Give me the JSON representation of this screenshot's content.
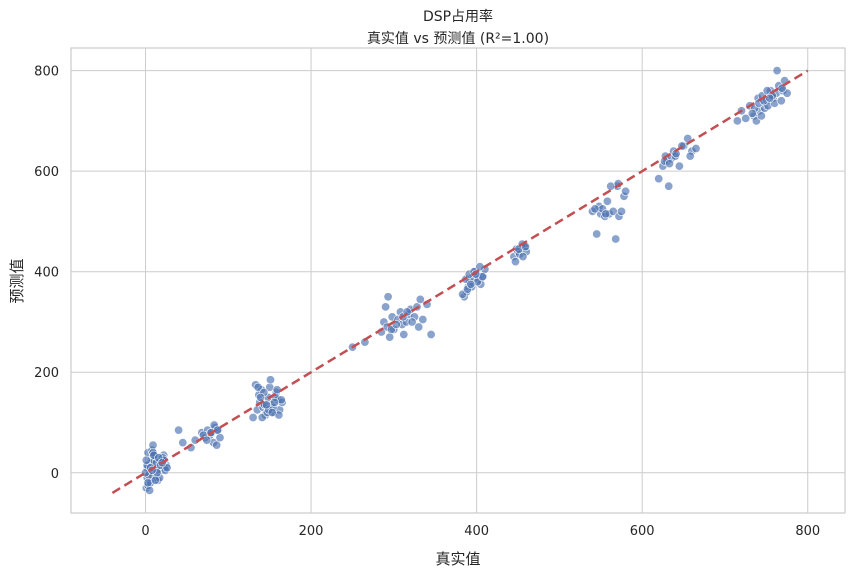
{
  "chart_data": {
    "type": "scatter",
    "title_line1": "DSP占用率",
    "title_line2": "真实值 vs 预测值 (R²=1.00)",
    "xlabel": "真实值",
    "ylabel": "预测值",
    "xlim": [
      -90,
      845
    ],
    "ylim": [
      -80,
      845
    ],
    "xticks": [
      0,
      200,
      400,
      600,
      800
    ],
    "yticks": [
      0,
      200,
      400,
      600,
      800
    ],
    "grid": true,
    "point_color": "#4c72b0",
    "reference_line": {
      "from": [
        -40,
        -40
      ],
      "to": [
        800,
        800
      ],
      "color": "#c44e52",
      "style": "dashed"
    },
    "series": [
      {
        "x": [
          2,
          4,
          6,
          8,
          3,
          5,
          1,
          7,
          10,
          12,
          15,
          18,
          20,
          22,
          25,
          3,
          5,
          8,
          12,
          16,
          2,
          6,
          9,
          14,
          19,
          23,
          4,
          7,
          11,
          0,
          2,
          5,
          9,
          13,
          17,
          21,
          24,
          1,
          3,
          6,
          10,
          14,
          18,
          22,
          26,
          8,
          12,
          16,
          20,
          40,
          45,
          55,
          60,
          68,
          72,
          75,
          78,
          80,
          82,
          84,
          86,
          88,
          90,
          70,
          74,
          79,
          83,
          87,
          130,
          135,
          138,
          140,
          142,
          145,
          148,
          150,
          152,
          155,
          158,
          160,
          162,
          165,
          133,
          137,
          141,
          144,
          147,
          151,
          154,
          157,
          161,
          164,
          136,
          143,
          149,
          156,
          139,
          146,
          153,
          159,
          250,
          265,
          285,
          288,
          290,
          292,
          295,
          298,
          300,
          305,
          308,
          310,
          312,
          315,
          318,
          320,
          325,
          330,
          335,
          340,
          345,
          293,
          297,
          303,
          311,
          316,
          322,
          328,
          332,
          385,
          388,
          390,
          392,
          395,
          398,
          400,
          402,
          405,
          408,
          410,
          383,
          387,
          391,
          394,
          397,
          401,
          404,
          407,
          389,
          393,
          399,
          445,
          448,
          450,
          452,
          455,
          458,
          460,
          447,
          451,
          456,
          459,
          540,
          545,
          548,
          550,
          552,
          555,
          558,
          560,
          565,
          568,
          570,
          572,
          575,
          578,
          580,
          562,
          571,
          543,
          556,
          620,
          625,
          628,
          630,
          632,
          635,
          638,
          640,
          645,
          650,
          655,
          660,
          665,
          627,
          633,
          641,
          648,
          658,
          715,
          720,
          725,
          730,
          735,
          738,
          740,
          742,
          745,
          748,
          750,
          752,
          755,
          758,
          760,
          762,
          765,
          768,
          770,
          772,
          775,
          736,
          744,
          751,
          757,
          763,
          769,
          733,
          741,
          747,
          754
        ],
        "y": [
          -10,
          5,
          20,
          -5,
          40,
          15,
          -30,
          25,
          10,
          30,
          -15,
          20,
          5,
          35,
          15,
          -25,
          0,
          45,
          -10,
          25,
          10,
          -20,
          55,
          5,
          30,
          10,
          -5,
          20,
          35,
          0,
          15,
          -35,
          40,
          20,
          -10,
          30,
          5,
          25,
          -20,
          10,
          35,
          0,
          15,
          25,
          10,
          5,
          -15,
          30,
          20,
          85,
          60,
          50,
          65,
          80,
          70,
          85,
          75,
          80,
          60,
          90,
          55,
          85,
          70,
          75,
          65,
          80,
          95,
          85,
          110,
          125,
          140,
          165,
          130,
          115,
          150,
          170,
          135,
          120,
          160,
          145,
          125,
          140,
          175,
          155,
          110,
          135,
          120,
          185,
          130,
          150,
          115,
          145,
          170,
          160,
          125,
          140,
          150,
          135,
          120,
          165,
          250,
          260,
          280,
          300,
          330,
          290,
          270,
          310,
          285,
          305,
          320,
          295,
          275,
          300,
          315,
          325,
          310,
          290,
          305,
          335,
          275,
          350,
          285,
          295,
          310,
          320,
          300,
          330,
          345,
          350,
          360,
          370,
          380,
          390,
          400,
          395,
          385,
          375,
          390,
          405,
          355,
          385,
          395,
          370,
          400,
          380,
          410,
          390,
          365,
          375,
          395,
          430,
          445,
          440,
          435,
          455,
          450,
          440,
          420,
          445,
          430,
          450,
          520,
          475,
          530,
          515,
          525,
          510,
          540,
          515,
          520,
          465,
          570,
          510,
          520,
          550,
          560,
          570,
          575,
          525,
          515,
          585,
          610,
          630,
          620,
          570,
          625,
          640,
          630,
          610,
          650,
          665,
          640,
          645,
          620,
          615,
          635,
          650,
          630,
          700,
          720,
          705,
          730,
          710,
          700,
          745,
          720,
          750,
          725,
          740,
          730,
          760,
          745,
          735,
          755,
          770,
          740,
          760,
          780,
          755,
          725,
          710,
          760,
          750,
          800,
          765,
          715,
          735,
          740,
          745
        ]
      }
    ]
  }
}
